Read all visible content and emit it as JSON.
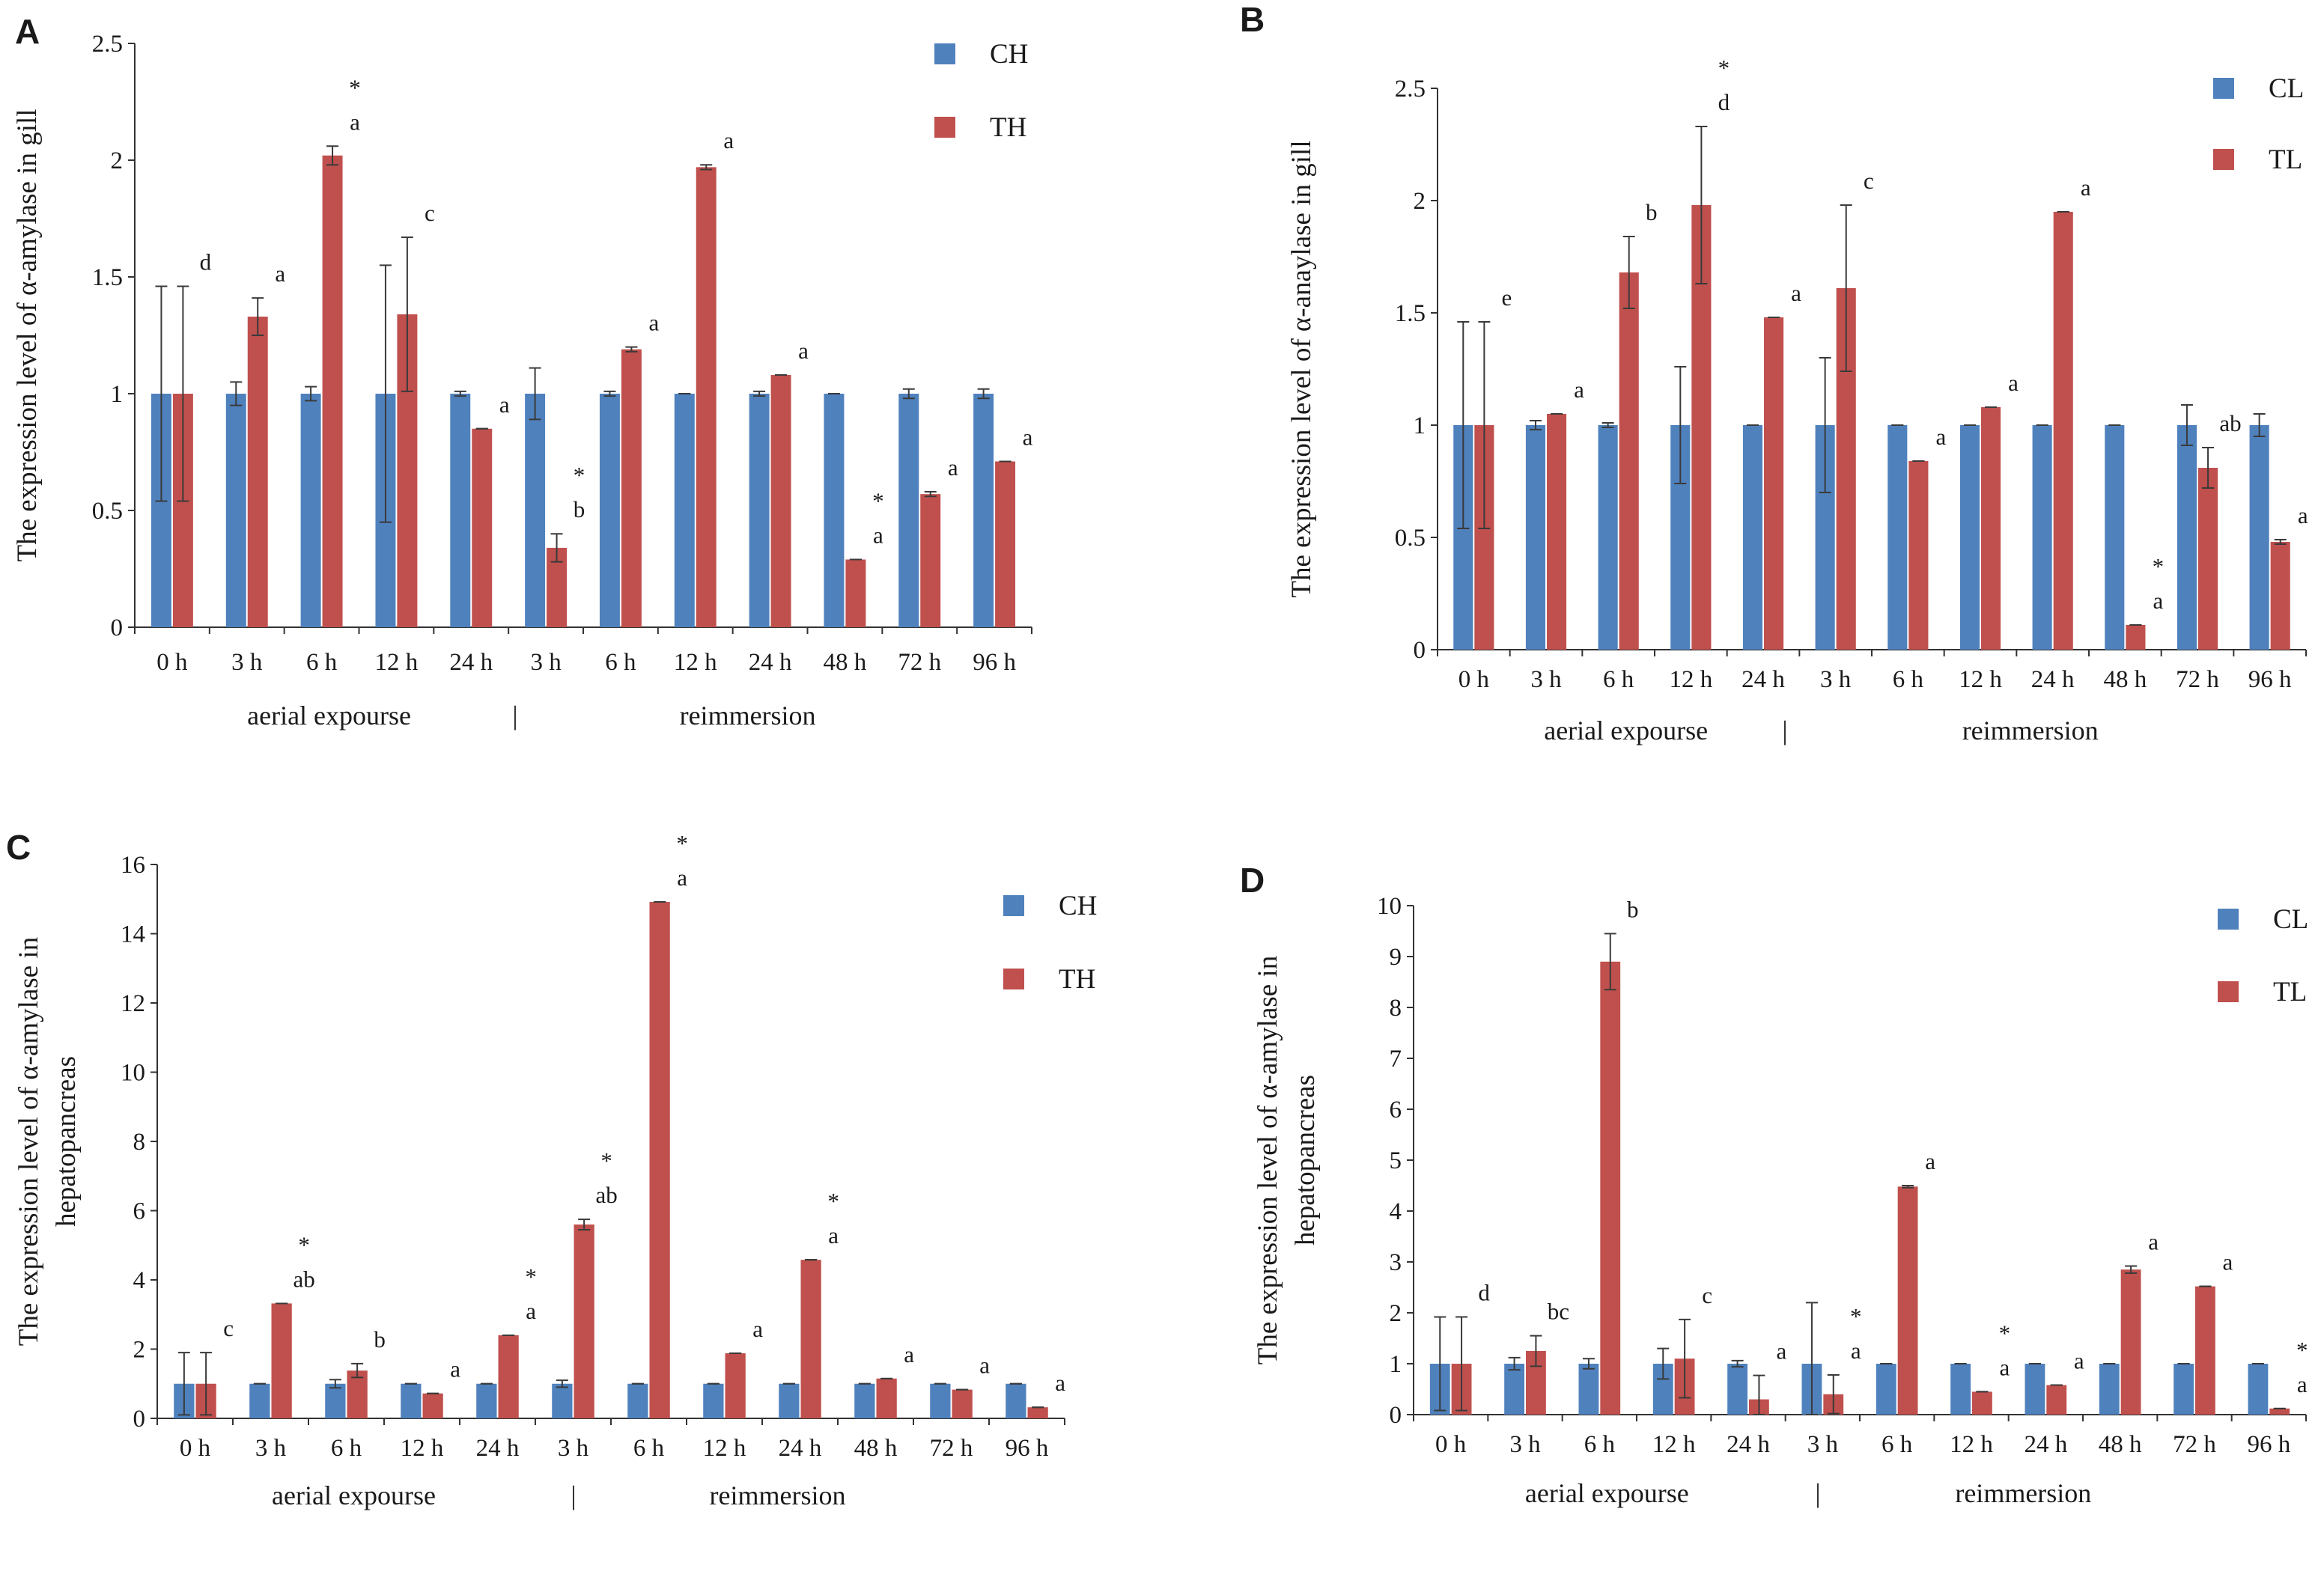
{
  "colors": {
    "control": "#4f81bd",
    "treat": "#c0504d",
    "axis": "#333333",
    "error": "#3a3a3a"
  },
  "chart_data": [
    {
      "id": "A",
      "panel_label": "A",
      "type": "bar",
      "title": "",
      "ylabel": "The expression level of α-amylase in gill",
      "ylabel_lines": [
        "The expression level of α-amylase in gill"
      ],
      "ylim": [
        0,
        2.5
      ],
      "yticks": [
        0,
        0.5,
        1,
        1.5,
        2,
        2.5
      ],
      "ytick_labels": [
        "0",
        "0.5",
        "1",
        "1.5",
        "2",
        "2.5"
      ],
      "categories": [
        "0 h",
        "3 h",
        "6 h",
        "12 h",
        "24 h",
        "3 h",
        "6 h",
        "12 h",
        "24 h",
        "48 h",
        "72 h",
        "96 h"
      ],
      "groups": [
        {
          "label": "aerial expourse"
        },
        {
          "label": "reimmersion"
        }
      ],
      "group_separator": "|",
      "legend_position": "top-right",
      "series": [
        {
          "name": "CH",
          "values": [
            1,
            1,
            1,
            1,
            1,
            1,
            1,
            1,
            1,
            1,
            1,
            1
          ],
          "errors": [
            0.46,
            0.05,
            0.03,
            0.55,
            0.01,
            0.11,
            0.01,
            0,
            0.01,
            0,
            0.02,
            0.02
          ]
        },
        {
          "name": "TH",
          "values": [
            1,
            1.33,
            2.02,
            1.34,
            0.85,
            0.34,
            1.19,
            1.97,
            1.08,
            0.29,
            0.57,
            0.71
          ],
          "errors": [
            0.46,
            0.08,
            0.04,
            0.33,
            0,
            0.06,
            0.01,
            0.01,
            0,
            0,
            0.01,
            0
          ]
        }
      ],
      "annotations": [
        {
          "index": 0,
          "letter": "d",
          "star": false
        },
        {
          "index": 1,
          "letter": "a",
          "star": false
        },
        {
          "index": 2,
          "letter": "a",
          "star": true
        },
        {
          "index": 3,
          "letter": "c",
          "star": false
        },
        {
          "index": 4,
          "letter": "a",
          "star": false
        },
        {
          "index": 5,
          "letter": "b",
          "star": true
        },
        {
          "index": 6,
          "letter": "a",
          "star": false
        },
        {
          "index": 7,
          "letter": "a",
          "star": false
        },
        {
          "index": 8,
          "letter": "a",
          "star": false
        },
        {
          "index": 9,
          "letter": "a",
          "star": true
        },
        {
          "index": 10,
          "letter": "a",
          "star": false
        },
        {
          "index": 11,
          "letter": "a",
          "star": false
        }
      ]
    },
    {
      "id": "B",
      "panel_label": "B",
      "type": "bar",
      "title": "",
      "ylabel": "The expression level of α-anaylase in gill",
      "ylabel_lines": [
        "The expression level of α-anaylase in gill"
      ],
      "ylim": [
        0,
        2.5
      ],
      "yticks": [
        0,
        0.5,
        1,
        1.5,
        2,
        2.5
      ],
      "ytick_labels": [
        "0",
        "0.5",
        "1",
        "1.5",
        "2",
        "2.5"
      ],
      "categories": [
        "0 h",
        "3 h",
        "6 h",
        "12 h",
        "24 h",
        "3 h",
        "6 h",
        "12 h",
        "24 h",
        "48 h",
        "72 h",
        "96 h"
      ],
      "groups": [
        {
          "label": "aerial expourse"
        },
        {
          "label": "reimmersion"
        }
      ],
      "group_separator": "|",
      "legend_position": "top-right",
      "series": [
        {
          "name": "CL",
          "values": [
            1,
            1,
            1,
            1,
            1,
            1,
            1,
            1,
            1,
            1,
            1,
            1
          ],
          "errors": [
            0.46,
            0.02,
            0.01,
            0.26,
            0,
            0.3,
            0,
            0,
            0,
            0,
            0.09,
            0.05
          ]
        },
        {
          "name": "TL",
          "values": [
            1,
            1.05,
            1.68,
            1.98,
            1.48,
            1.61,
            0.84,
            1.08,
            1.95,
            0.11,
            0.81,
            0.48
          ],
          "errors": [
            0.46,
            0,
            0.16,
            0.35,
            0,
            0.37,
            0,
            0,
            0,
            0,
            0.09,
            0.01
          ]
        }
      ],
      "annotations": [
        {
          "index": 0,
          "letter": "e",
          "star": false
        },
        {
          "index": 1,
          "letter": "a",
          "star": false
        },
        {
          "index": 2,
          "letter": "b",
          "star": false
        },
        {
          "index": 3,
          "letter": "d",
          "star": true
        },
        {
          "index": 4,
          "letter": "a",
          "star": false
        },
        {
          "index": 5,
          "letter": "c",
          "star": false
        },
        {
          "index": 6,
          "letter": "a",
          "star": false
        },
        {
          "index": 7,
          "letter": "a",
          "star": false
        },
        {
          "index": 8,
          "letter": "a",
          "star": false
        },
        {
          "index": 9,
          "letter": "a",
          "star": true
        },
        {
          "index": 10,
          "letter": "ab",
          "star": false
        },
        {
          "index": 11,
          "letter": "a",
          "star": false
        }
      ]
    },
    {
      "id": "C",
      "panel_label": "C",
      "type": "bar",
      "title": "",
      "ylabel": "The expression level of α-amylase in hepatopancreas",
      "ylabel_lines": [
        "The expression level of α-amylase in",
        "hepatopancreas"
      ],
      "ylim": [
        0,
        16
      ],
      "yticks": [
        0,
        2,
        4,
        6,
        8,
        10,
        12,
        14,
        16
      ],
      "ytick_labels": [
        "0",
        "2",
        "4",
        "6",
        "8",
        "10",
        "12",
        "14",
        "16"
      ],
      "categories": [
        "0 h",
        "3 h",
        "6 h",
        "12 h",
        "24 h",
        "3 h",
        "6 h",
        "12 h",
        "24 h",
        "48 h",
        "72 h",
        "96 h"
      ],
      "groups": [
        {
          "label": "aerial expourse"
        },
        {
          "label": "reimmersion"
        }
      ],
      "group_separator": "|",
      "legend_position": "top-right",
      "series": [
        {
          "name": "CH",
          "values": [
            1,
            1,
            1,
            1,
            1,
            1,
            1,
            1,
            1,
            1,
            1,
            1
          ],
          "errors": [
            0.9,
            0,
            0.12,
            0,
            0,
            0.1,
            0,
            0,
            0,
            0,
            0,
            0
          ]
        },
        {
          "name": "TH",
          "values": [
            1,
            3.32,
            1.38,
            0.72,
            2.4,
            5.6,
            14.92,
            1.88,
            4.58,
            1.15,
            0.83,
            0.32
          ],
          "errors": [
            0.9,
            0,
            0.2,
            0,
            0,
            0.15,
            0,
            0,
            0,
            0,
            0,
            0
          ]
        }
      ],
      "annotations": [
        {
          "index": 0,
          "letter": "c",
          "star": false
        },
        {
          "index": 1,
          "letter": "ab",
          "star": true
        },
        {
          "index": 2,
          "letter": "b",
          "star": false
        },
        {
          "index": 3,
          "letter": "a",
          "star": false
        },
        {
          "index": 4,
          "letter": "a",
          "star": true
        },
        {
          "index": 5,
          "letter": "ab",
          "star": true
        },
        {
          "index": 6,
          "letter": "a",
          "star": true
        },
        {
          "index": 7,
          "letter": "a",
          "star": false
        },
        {
          "index": 8,
          "letter": "a",
          "star": true
        },
        {
          "index": 9,
          "letter": "a",
          "star": false
        },
        {
          "index": 10,
          "letter": "a",
          "star": false
        },
        {
          "index": 11,
          "letter": "a",
          "star": false
        }
      ]
    },
    {
      "id": "D",
      "panel_label": "D",
      "type": "bar",
      "title": "",
      "ylabel": "The expression level of α-amylase in hepatopancreas",
      "ylabel_lines": [
        "The expression level of α-amylase in",
        "hepatopancreas"
      ],
      "ylim": [
        0,
        10
      ],
      "yticks": [
        0,
        1,
        2,
        3,
        4,
        5,
        6,
        7,
        8,
        9,
        10
      ],
      "ytick_labels": [
        "0",
        "1",
        "2",
        "3",
        "4",
        "5",
        "6",
        "7",
        "8",
        "9",
        "10"
      ],
      "categories": [
        "0 h",
        "3 h",
        "6 h",
        "12 h",
        "24 h",
        "3 h",
        "6 h",
        "12 h",
        "24 h",
        "48 h",
        "72 h",
        "96 h"
      ],
      "groups": [
        {
          "label": "aerial expourse"
        },
        {
          "label": "reimmersion"
        }
      ],
      "group_separator": "|",
      "legend_position": "top-right",
      "series": [
        {
          "name": "CL",
          "values": [
            1,
            1,
            1,
            1,
            1,
            1,
            1,
            1,
            1,
            1,
            1,
            1
          ],
          "errors": [
            0.92,
            0.12,
            0.1,
            0.3,
            0.06,
            1.2,
            0,
            0,
            0,
            0,
            0,
            0
          ]
        },
        {
          "name": "TL",
          "values": [
            1,
            1.25,
            8.9,
            1.1,
            0.3,
            0.4,
            4.48,
            0.45,
            0.58,
            2.85,
            2.52,
            0.12
          ],
          "errors": [
            0.92,
            0.3,
            0.55,
            0.77,
            0.47,
            0.38,
            0.02,
            0,
            0,
            0.07,
            0,
            0
          ]
        }
      ],
      "annotations": [
        {
          "index": 0,
          "letter": "d",
          "star": false
        },
        {
          "index": 1,
          "letter": "bc",
          "star": false
        },
        {
          "index": 2,
          "letter": "b",
          "star": false
        },
        {
          "index": 3,
          "letter": "c",
          "star": false
        },
        {
          "index": 4,
          "letter": "a",
          "star": false
        },
        {
          "index": 5,
          "letter": "a",
          "star": true
        },
        {
          "index": 6,
          "letter": "a",
          "star": false
        },
        {
          "index": 7,
          "letter": "a",
          "star": true
        },
        {
          "index": 8,
          "letter": "a",
          "star": false
        },
        {
          "index": 9,
          "letter": "a",
          "star": false
        },
        {
          "index": 10,
          "letter": "a",
          "star": false
        },
        {
          "index": 11,
          "letter": "a",
          "star": true
        }
      ]
    }
  ]
}
